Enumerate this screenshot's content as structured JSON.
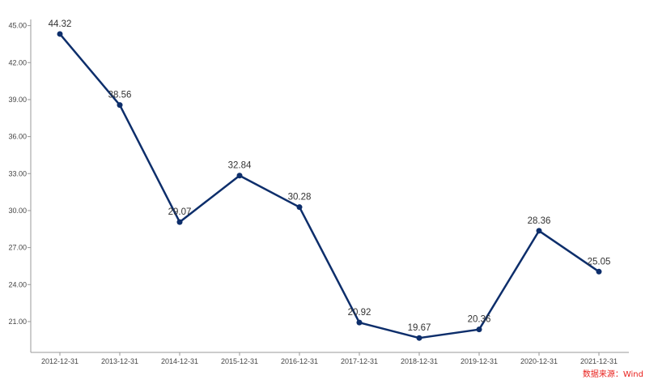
{
  "chart_data": {
    "type": "line",
    "categories": [
      "2012-12-31",
      "2013-12-31",
      "2014-12-31",
      "2015-12-31",
      "2016-12-31",
      "2017-12-31",
      "2018-12-31",
      "2019-12-31",
      "2020-12-31",
      "2021-12-31"
    ],
    "series": [
      {
        "values": [
          44.32,
          38.56,
          29.07,
          32.84,
          30.28,
          20.92,
          19.67,
          20.36,
          28.36,
          25.05
        ],
        "data_labels": [
          "44.32",
          "38.56",
          "29.07",
          "32.84",
          "30.28",
          "20.92",
          "19.67",
          "20.36",
          "28.36",
          "25.05"
        ]
      }
    ],
    "ylim": [
      18.5,
      45.5
    ],
    "yticks": [
      "21.00",
      "24.00",
      "27.00",
      "30.00",
      "33.00",
      "36.00",
      "39.00",
      "42.00",
      "45.00"
    ],
    "ytick_values": [
      21,
      24,
      27,
      30,
      33,
      36,
      39,
      42,
      45
    ],
    "grid": false,
    "legend": "none",
    "line_color": "#0d2e6b",
    "axis_color": "#999999"
  },
  "source_note": "数据来源：Wind",
  "source_color": "#e8211d"
}
